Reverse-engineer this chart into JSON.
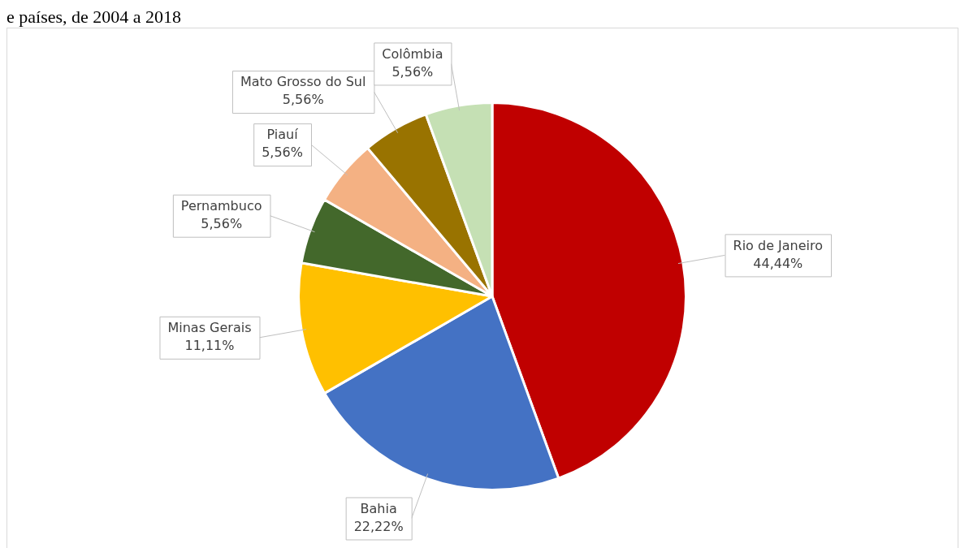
{
  "chart_data": {
    "type": "pie",
    "title": "e países, de 2004 a 2018",
    "categories": [
      "Rio de Janeiro",
      "Bahia",
      "Minas Gerais",
      "Pernambuco",
      "Piauí",
      "Mato Grosso do Sul",
      "Colômbia"
    ],
    "values": [
      44.44,
      22.22,
      11.11,
      5.56,
      5.56,
      5.56,
      5.56
    ],
    "value_labels": [
      "44,44%",
      "22,22%",
      "11,11%",
      "5,56%",
      "5,56%",
      "5,56%",
      "5,56%"
    ],
    "colors": [
      "#c00000",
      "#4472c4",
      "#ffc000",
      "#43682b",
      "#f4b183",
      "#997300",
      "#c5e0b4"
    ],
    "legend": false
  }
}
